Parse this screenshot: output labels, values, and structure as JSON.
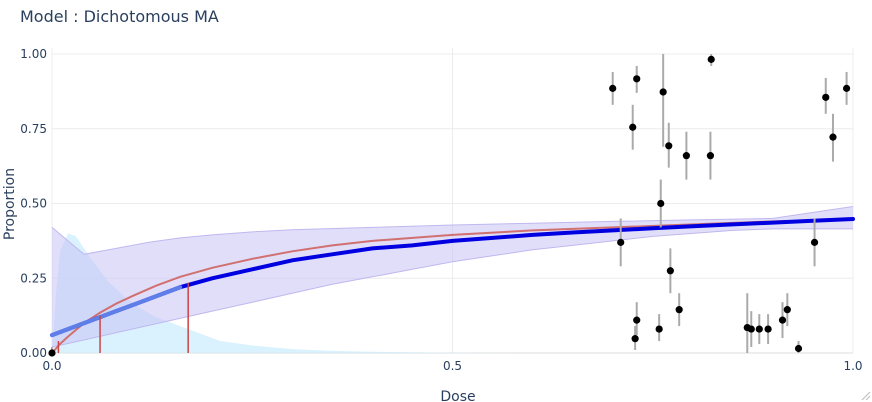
{
  "chart_data": {
    "type": "scatter",
    "title": "Model : Dichotomous MA",
    "xlabel": "Dose",
    "ylabel": "Proportion",
    "xlim": [
      0,
      1
    ],
    "ylim": [
      0,
      1
    ],
    "x_ticks": [
      "0.0",
      "0.5",
      "1.0"
    ],
    "y_ticks": [
      "0.00",
      "0.25",
      "0.50",
      "0.75",
      "1.00"
    ],
    "grid": true,
    "legend": "none",
    "colors": {
      "ma_curve": "#0000e0",
      "ci_band": "#c8c3f5",
      "posterior_density": "#cdeefe",
      "model_curve": "#d07070",
      "bmd_lines": "#cc4444",
      "points": "#000000",
      "error_bars": "#aaaaaa",
      "highlight_segment": "#5f7fe8"
    },
    "points": [
      {
        "x": 0.0,
        "y": 0.0,
        "lo": 0.0,
        "hi": 0.02
      },
      {
        "x": 0.7,
        "y": 0.885,
        "lo": 0.83,
        "hi": 0.94
      },
      {
        "x": 0.71,
        "y": 0.37,
        "lo": 0.29,
        "hi": 0.45
      },
      {
        "x": 0.725,
        "y": 0.755,
        "lo": 0.68,
        "hi": 0.83
      },
      {
        "x": 0.73,
        "y": 0.917,
        "lo": 0.87,
        "hi": 0.96
      },
      {
        "x": 0.73,
        "y": 0.11,
        "lo": 0.06,
        "hi": 0.17
      },
      {
        "x": 0.728,
        "y": 0.048,
        "lo": 0.01,
        "hi": 0.09
      },
      {
        "x": 0.758,
        "y": 0.08,
        "lo": 0.04,
        "hi": 0.13
      },
      {
        "x": 0.76,
        "y": 0.5,
        "lo": 0.42,
        "hi": 0.58
      },
      {
        "x": 0.763,
        "y": 0.873,
        "lo": 0.69,
        "hi": 1.0
      },
      {
        "x": 0.77,
        "y": 0.693,
        "lo": 0.62,
        "hi": 0.77
      },
      {
        "x": 0.772,
        "y": 0.275,
        "lo": 0.2,
        "hi": 0.35
      },
      {
        "x": 0.783,
        "y": 0.145,
        "lo": 0.09,
        "hi": 0.2
      },
      {
        "x": 0.792,
        "y": 0.66,
        "lo": 0.58,
        "hi": 0.74
      },
      {
        "x": 0.822,
        "y": 0.66,
        "lo": 0.58,
        "hi": 0.74
      },
      {
        "x": 0.823,
        "y": 0.982,
        "lo": 0.96,
        "hi": 1.0
      },
      {
        "x": 0.868,
        "y": 0.085,
        "lo": 0.0,
        "hi": 0.2
      },
      {
        "x": 0.873,
        "y": 0.08,
        "lo": 0.02,
        "hi": 0.14
      },
      {
        "x": 0.883,
        "y": 0.08,
        "lo": 0.03,
        "hi": 0.13
      },
      {
        "x": 0.894,
        "y": 0.08,
        "lo": 0.03,
        "hi": 0.13
      },
      {
        "x": 0.912,
        "y": 0.11,
        "lo": 0.05,
        "hi": 0.17
      },
      {
        "x": 0.918,
        "y": 0.145,
        "lo": 0.09,
        "hi": 0.2
      },
      {
        "x": 0.932,
        "y": 0.015,
        "lo": 0.0,
        "hi": 0.04
      },
      {
        "x": 0.952,
        "y": 0.37,
        "lo": 0.29,
        "hi": 0.45
      },
      {
        "x": 0.966,
        "y": 0.855,
        "lo": 0.8,
        "hi": 0.92
      },
      {
        "x": 0.975,
        "y": 0.722,
        "lo": 0.64,
        "hi": 0.8
      },
      {
        "x": 0.992,
        "y": 0.885,
        "lo": 0.83,
        "hi": 0.94
      }
    ],
    "ma_curve": {
      "x": [
        0.0,
        0.02,
        0.05,
        0.08,
        0.1,
        0.13,
        0.16,
        0.2,
        0.25,
        0.3,
        0.35,
        0.4,
        0.45,
        0.5,
        0.55,
        0.6,
        0.65,
        0.7,
        0.75,
        0.8,
        0.85,
        0.9,
        0.95,
        1.0
      ],
      "y": [
        0.06,
        0.08,
        0.11,
        0.14,
        0.16,
        0.19,
        0.22,
        0.25,
        0.28,
        0.31,
        0.33,
        0.35,
        0.36,
        0.375,
        0.385,
        0.395,
        0.403,
        0.41,
        0.417,
        0.424,
        0.43,
        0.436,
        0.442,
        0.448
      ]
    },
    "ma_highlight_range": [
      0.0,
      0.17
    ],
    "ci_lower": {
      "x": [
        0.0,
        0.05,
        0.1,
        0.15,
        0.2,
        0.25,
        0.3,
        0.35,
        0.4,
        0.45,
        0.5,
        0.55,
        0.6,
        0.65,
        0.7,
        0.75,
        0.8,
        0.85,
        0.9,
        0.95,
        1.0
      ],
      "y": [
        0.02,
        0.05,
        0.08,
        0.11,
        0.14,
        0.17,
        0.2,
        0.23,
        0.255,
        0.28,
        0.305,
        0.325,
        0.345,
        0.36,
        0.375,
        0.39,
        0.4,
        0.41,
        0.415,
        0.415,
        0.415
      ]
    },
    "ci_upper": {
      "x": [
        0.0,
        0.04,
        0.08,
        0.12,
        0.16,
        0.2,
        0.25,
        0.3,
        0.4,
        0.5,
        0.6,
        0.7,
        0.8,
        0.9,
        1.0
      ],
      "y": [
        0.42,
        0.33,
        0.35,
        0.37,
        0.385,
        0.395,
        0.405,
        0.412,
        0.42,
        0.428,
        0.434,
        0.44,
        0.445,
        0.45,
        0.49
      ]
    },
    "model_curve": {
      "x": [
        0.0,
        0.005,
        0.01,
        0.02,
        0.04,
        0.06,
        0.08,
        0.1,
        0.13,
        0.16,
        0.2,
        0.25,
        0.3,
        0.35,
        0.4,
        0.5,
        0.6,
        0.7,
        0.8,
        0.9,
        1.0
      ],
      "y": [
        0.0,
        0.015,
        0.03,
        0.055,
        0.1,
        0.135,
        0.165,
        0.19,
        0.225,
        0.255,
        0.285,
        0.315,
        0.34,
        0.36,
        0.375,
        0.395,
        0.41,
        0.42,
        0.43,
        0.44,
        0.445
      ]
    },
    "density_curve": {
      "x": [
        0.0,
        0.005,
        0.01,
        0.02,
        0.03,
        0.05,
        0.07,
        0.09,
        0.11,
        0.13,
        0.15,
        0.17,
        0.19,
        0.21,
        0.25,
        0.3,
        0.35,
        0.4,
        0.5,
        0.6
      ],
      "y": [
        0.0,
        0.2,
        0.34,
        0.4,
        0.39,
        0.31,
        0.24,
        0.19,
        0.15,
        0.12,
        0.1,
        0.08,
        0.06,
        0.04,
        0.025,
        0.013,
        0.007,
        0.004,
        0.001,
        0.0
      ]
    },
    "bmd_lines": [
      {
        "x": 0.06,
        "y": 0.125
      },
      {
        "x": 0.17,
        "y": 0.235
      }
    ],
    "bmdl_line": {
      "x": 0.008,
      "y": 0.04
    }
  }
}
